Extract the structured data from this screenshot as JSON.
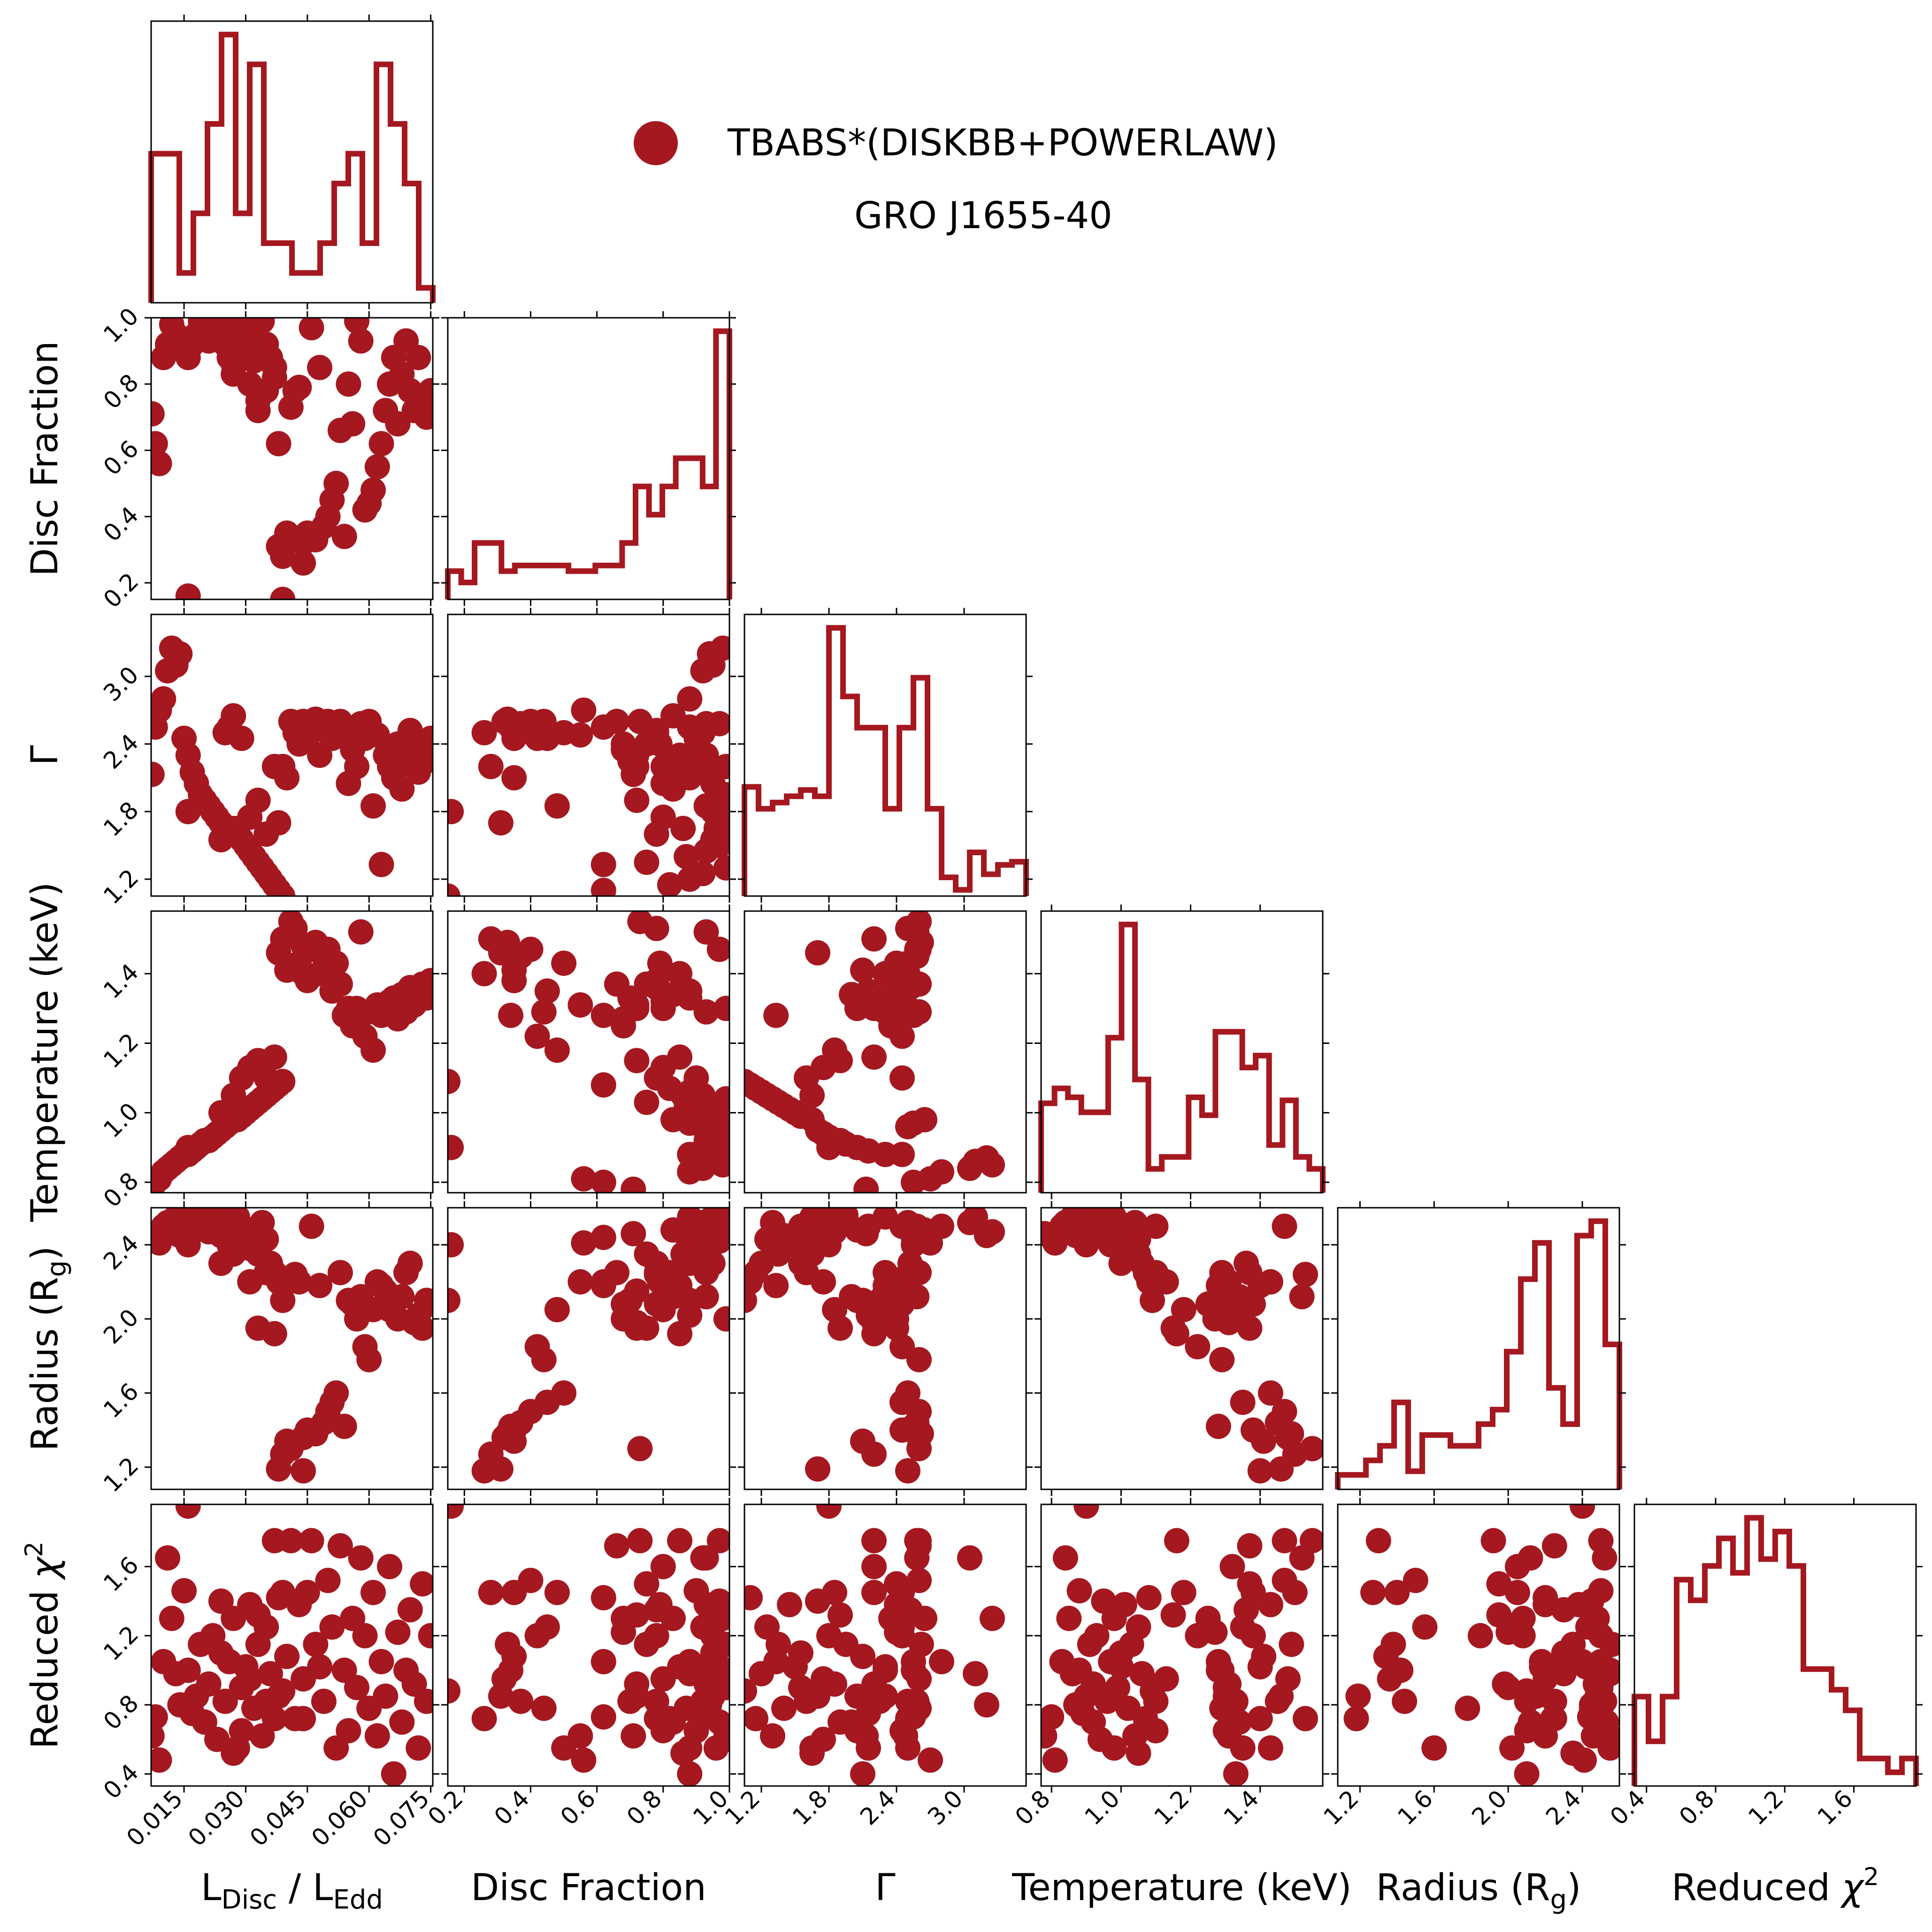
{
  "colors": {
    "series": "#a51820",
    "axes": "#000000",
    "background": "#ffffff"
  },
  "legend": {
    "label": "TBABS*(DISKBB+POWERLAW)",
    "subtitle": "GRO J1655-40"
  },
  "chart_data": {
    "type": "corner",
    "title": "",
    "variables": [
      {
        "key": "ldisc",
        "label_main": "L",
        "label_sub": "Disc",
        "label_mid": " / L",
        "label_sub2": "Edd",
        "ticks": [
          "0.015",
          "0.030",
          "0.045",
          "0.060",
          "0.075"
        ],
        "tick_values": [
          0.015,
          0.03,
          0.045,
          0.06,
          0.075
        ],
        "lim": [
          0.007,
          0.0755
        ]
      },
      {
        "key": "disc_fraction",
        "label": "Disc Fraction",
        "ticks": [
          "0.2",
          "0.4",
          "0.6",
          "0.8",
          "1.0"
        ],
        "tick_values": [
          0.2,
          0.4,
          0.6,
          0.8,
          1.0
        ],
        "lim": [
          0.15,
          1.0
        ]
      },
      {
        "key": "gamma",
        "label": "Γ",
        "ticks": [
          "1.2",
          "1.8",
          "2.4",
          "3.0"
        ],
        "tick_values": [
          1.2,
          1.8,
          2.4,
          3.0
        ],
        "lim": [
          1.05,
          3.55
        ]
      },
      {
        "key": "temperature",
        "label": "Temperature (keV)",
        "ticks": [
          "0.8",
          "1.0",
          "1.2",
          "1.4"
        ],
        "tick_values": [
          0.8,
          1.0,
          1.2,
          1.4
        ],
        "lim": [
          0.77,
          1.58
        ]
      },
      {
        "key": "radius",
        "label_main": "Radius (R",
        "label_sub": "g",
        "label_end": ")",
        "ticks": [
          "1.2",
          "1.6",
          "2.0",
          "2.4"
        ],
        "tick_values": [
          1.2,
          1.6,
          2.0,
          2.4
        ],
        "lim": [
          1.08,
          2.6
        ]
      },
      {
        "key": "chi2",
        "label_main": "Reduced ",
        "label_sym": "χ",
        "label_sup": "2",
        "ticks": [
          "0.4",
          "0.8",
          "1.2",
          "1.6"
        ],
        "tick_values": [
          0.4,
          0.8,
          1.2,
          1.6
        ],
        "lim": [
          0.33,
          1.96
        ]
      }
    ],
    "histograms": [
      {
        "counts": [
          5,
          5,
          1,
          3,
          6,
          9,
          3,
          8,
          2,
          2,
          1,
          1,
          2,
          4,
          5,
          2,
          8,
          6,
          4,
          0.5
        ]
      },
      {
        "counts": [
          1,
          0.6,
          2,
          2,
          1,
          1.2,
          1.2,
          1.2,
          1.2,
          1,
          1,
          1.2,
          1.2,
          2,
          4,
          3,
          4,
          5,
          5,
          4,
          9.5
        ]
      },
      {
        "counts": [
          3.5,
          2.8,
          3,
          3.2,
          3.4,
          3.2,
          8.6,
          6.4,
          5.4,
          5.4,
          2.8,
          5.4,
          7,
          2.8,
          0.6,
          0.2,
          1.4,
          0.7,
          1,
          1.1
        ]
      },
      {
        "counts": [
          3,
          3.5,
          3.2,
          2.7,
          2.7,
          5.2,
          9,
          3.8,
          0.8,
          1.2,
          1.2,
          3.2,
          2.6,
          5.4,
          5.4,
          4.2,
          4.6,
          1.6,
          3.1,
          1.2,
          0.8
        ]
      },
      {
        "counts": [
          0.4,
          0.4,
          0.8,
          1.2,
          2.4,
          0.5,
          1.5,
          1.5,
          1.2,
          1.2,
          1.8,
          2.2,
          3.8,
          5.8,
          6.8,
          2.8,
          1.8,
          7,
          7.4,
          4
        ]
      },
      {
        "counts": [
          2.6,
          1.3,
          2.6,
          6,
          5.4,
          6.4,
          7.2,
          6.2,
          7.8,
          6.6,
          7.4,
          6.4,
          3.4,
          3.4,
          2.8,
          2.2,
          0.8,
          0.8,
          0.4,
          0.8
        ]
      }
    ],
    "samples": [
      [
        0.0072,
        0.71,
        2.13,
        0.78,
        2.46,
        0.62
      ],
      [
        0.008,
        0.62,
        2.55,
        0.8,
        2.44,
        0.73
      ],
      [
        0.009,
        0.56,
        2.7,
        0.81,
        2.41,
        0.48
      ],
      [
        0.01,
        0.88,
        2.8,
        0.83,
        2.5,
        1.05
      ],
      [
        0.011,
        0.92,
        3.05,
        0.84,
        2.52,
        1.65
      ],
      [
        0.012,
        0.98,
        3.25,
        0.85,
        2.47,
        1.3
      ],
      [
        0.013,
        0.95,
        3.1,
        0.86,
        2.55,
        0.98
      ],
      [
        0.014,
        0.94,
        3.2,
        0.87,
        2.45,
        0.8
      ],
      [
        0.015,
        0.9,
        2.45,
        0.88,
        2.5,
        1.46
      ],
      [
        0.016,
        0.88,
        2.3,
        0.88,
        2.55,
        1.0
      ],
      [
        0.017,
        0.92,
        2.15,
        0.89,
        2.5,
        0.75
      ],
      [
        0.018,
        0.95,
        2.05,
        0.9,
        2.48,
        0.85
      ],
      [
        0.019,
        0.99,
        1.95,
        0.91,
        2.56,
        1.15
      ],
      [
        0.02,
        0.97,
        1.9,
        0.92,
        2.53,
        0.7
      ],
      [
        0.021,
        0.93,
        1.85,
        0.92,
        2.47,
        0.92
      ],
      [
        0.022,
        0.95,
        1.8,
        0.93,
        2.5,
        1.2
      ],
      [
        0.023,
        0.99,
        1.75,
        0.94,
        2.58,
        0.6
      ],
      [
        0.024,
        0.97,
        1.7,
        0.95,
        2.45,
        1.4
      ],
      [
        0.025,
        0.92,
        2.5,
        0.96,
        2.52,
        0.82
      ],
      [
        0.026,
        0.88,
        2.55,
        0.97,
        2.4,
        1.05
      ],
      [
        0.027,
        0.83,
        2.65,
        0.98,
        2.48,
        1.3
      ],
      [
        0.028,
        0.96,
        1.65,
        0.98,
        2.55,
        0.55
      ],
      [
        0.029,
        0.99,
        1.55,
        0.99,
        2.5,
        0.9
      ],
      [
        0.03,
        0.97,
        1.5,
        1.0,
        2.42,
        1.02
      ],
      [
        0.031,
        0.93,
        1.45,
        1.01,
        2.38,
        1.38
      ],
      [
        0.032,
        0.87,
        1.4,
        1.02,
        2.45,
        0.78
      ],
      [
        0.033,
        0.75,
        1.35,
        1.03,
        2.35,
        1.15
      ],
      [
        0.034,
        0.99,
        1.3,
        1.04,
        2.52,
        0.62
      ],
      [
        0.035,
        0.92,
        1.25,
        1.05,
        2.43,
        1.25
      ],
      [
        0.036,
        0.88,
        1.2,
        1.06,
        2.3,
        0.98
      ],
      [
        0.037,
        0.82,
        1.15,
        1.07,
        2.25,
        0.72
      ],
      [
        0.038,
        0.62,
        1.1,
        1.08,
        2.2,
        1.42
      ],
      [
        0.039,
        0.15,
        1.05,
        1.09,
        2.1,
        0.88
      ],
      [
        0.016,
        0.16,
        1.8,
        0.9,
        2.4,
        1.95
      ],
      [
        0.024,
        0.95,
        1.55,
        1.0,
        2.3,
        1.1
      ],
      [
        0.027,
        0.86,
        1.65,
        1.05,
        2.35,
        0.52
      ],
      [
        0.029,
        0.9,
        2.45,
        1.1,
        2.5,
        0.65
      ],
      [
        0.031,
        0.8,
        1.75,
        1.13,
        2.2,
        0.95
      ],
      [
        0.033,
        0.72,
        1.9,
        1.15,
        1.95,
        1.32
      ],
      [
        0.035,
        0.78,
        1.6,
        1.1,
        2.25,
        0.82
      ],
      [
        0.037,
        0.85,
        2.2,
        1.16,
        1.92,
        1.75
      ],
      [
        0.038,
        0.31,
        1.7,
        1.46,
        1.19,
        0.85
      ],
      [
        0.039,
        0.28,
        2.2,
        1.5,
        1.27,
        1.45
      ],
      [
        0.04,
        0.35,
        2.1,
        1.41,
        1.34,
        1.08
      ],
      [
        0.041,
        0.73,
        2.6,
        1.55,
        1.3,
        1.75
      ],
      [
        0.042,
        0.78,
        2.5,
        1.53,
        2.24,
        0.72
      ],
      [
        0.043,
        0.79,
        2.4,
        1.43,
        2.2,
        1.38
      ],
      [
        0.044,
        0.32,
        2.6,
        1.48,
        1.36,
        0.95
      ],
      [
        0.044,
        0.26,
        2.5,
        1.4,
        1.18,
        0.72
      ],
      [
        0.045,
        0.35,
        2.45,
        1.38,
        1.4,
        1.45
      ],
      [
        0.046,
        0.97,
        2.58,
        1.47,
        2.5,
        1.75
      ],
      [
        0.047,
        0.33,
        2.62,
        1.49,
        1.38,
        1.15
      ],
      [
        0.048,
        0.85,
        2.3,
        1.4,
        2.18,
        1.02
      ],
      [
        0.049,
        0.37,
        2.58,
        1.45,
        1.44,
        0.82
      ],
      [
        0.05,
        0.4,
        2.6,
        1.47,
        1.5,
        1.52
      ],
      [
        0.051,
        0.45,
        2.45,
        1.35,
        1.55,
        1.25
      ],
      [
        0.052,
        0.5,
        2.5,
        1.43,
        1.6,
        0.55
      ],
      [
        0.053,
        0.66,
        2.6,
        1.37,
        2.25,
        1.72
      ],
      [
        0.054,
        0.34,
        2.55,
        1.28,
        1.42,
        1.0
      ],
      [
        0.055,
        0.8,
        2.05,
        1.3,
        2.1,
        0.65
      ],
      [
        0.056,
        0.68,
        2.35,
        1.25,
        2.08,
        1.3
      ],
      [
        0.057,
        0.99,
        2.2,
        1.3,
        2.0,
        0.9
      ],
      [
        0.058,
        0.93,
        2.58,
        1.52,
        2.12,
        1.65
      ],
      [
        0.059,
        0.42,
        2.45,
        1.22,
        1.85,
        1.2
      ],
      [
        0.06,
        0.44,
        2.6,
        1.29,
        1.78,
        0.78
      ],
      [
        0.061,
        0.48,
        1.85,
        1.18,
        2.05,
        1.45
      ],
      [
        0.062,
        0.55,
        2.48,
        1.31,
        2.2,
        0.62
      ],
      [
        0.063,
        0.62,
        1.33,
        1.28,
        2.18,
        1.05
      ],
      [
        0.064,
        0.72,
        2.3,
        1.3,
        2.15,
        0.85
      ],
      [
        0.065,
        0.8,
        2.2,
        1.32,
        2.05,
        1.6
      ],
      [
        0.066,
        0.88,
        2.1,
        1.33,
        2.1,
        0.4
      ],
      [
        0.067,
        0.68,
        2.4,
        1.27,
        2.0,
        1.22
      ],
      [
        0.068,
        0.83,
        2.0,
        1.34,
        2.12,
        0.7
      ],
      [
        0.069,
        0.93,
        2.3,
        1.29,
        2.25,
        1.0
      ],
      [
        0.07,
        0.78,
        2.52,
        1.36,
        2.3,
        1.35
      ],
      [
        0.071,
        0.72,
        2.2,
        1.31,
        1.98,
        0.92
      ],
      [
        0.072,
        0.88,
        2.15,
        1.35,
        2.02,
        0.55
      ],
      [
        0.073,
        0.75,
        2.4,
        1.37,
        1.95,
        1.5
      ],
      [
        0.074,
        0.7,
        2.25,
        1.33,
        2.1,
        0.82
      ],
      [
        0.075,
        0.78,
        2.45,
        1.38,
        2.08,
        1.2
      ]
    ]
  }
}
